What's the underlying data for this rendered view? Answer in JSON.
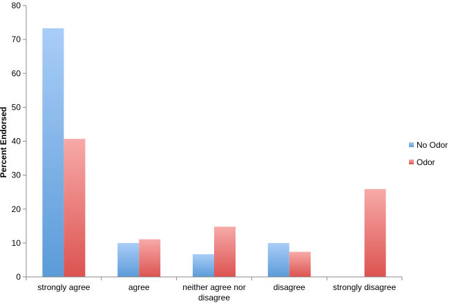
{
  "chart_data": {
    "type": "bar",
    "title": "",
    "xlabel": "",
    "ylabel": "Percent Endorsed",
    "ylim": [
      0,
      80
    ],
    "yticks": [
      0,
      10,
      20,
      30,
      40,
      50,
      60,
      70,
      80
    ],
    "grid": false,
    "legend_position": "right",
    "categories": [
      [
        "strongly agree"
      ],
      [
        "agree"
      ],
      [
        "neither agree nor",
        "disagree"
      ],
      [
        "disagree"
      ],
      [
        "strongly disagree"
      ]
    ],
    "series": [
      {
        "name": "No Odor",
        "color_top": "#a9cdf7",
        "color_bottom": "#5b9bd8",
        "values": [
          73.3,
          10,
          6.7,
          10,
          0
        ]
      },
      {
        "name": "Odor",
        "color_top": "#f7aaa8",
        "color_bottom": "#dc5350",
        "values": [
          40.7,
          11.1,
          14.8,
          7.4,
          25.9
        ]
      }
    ]
  }
}
